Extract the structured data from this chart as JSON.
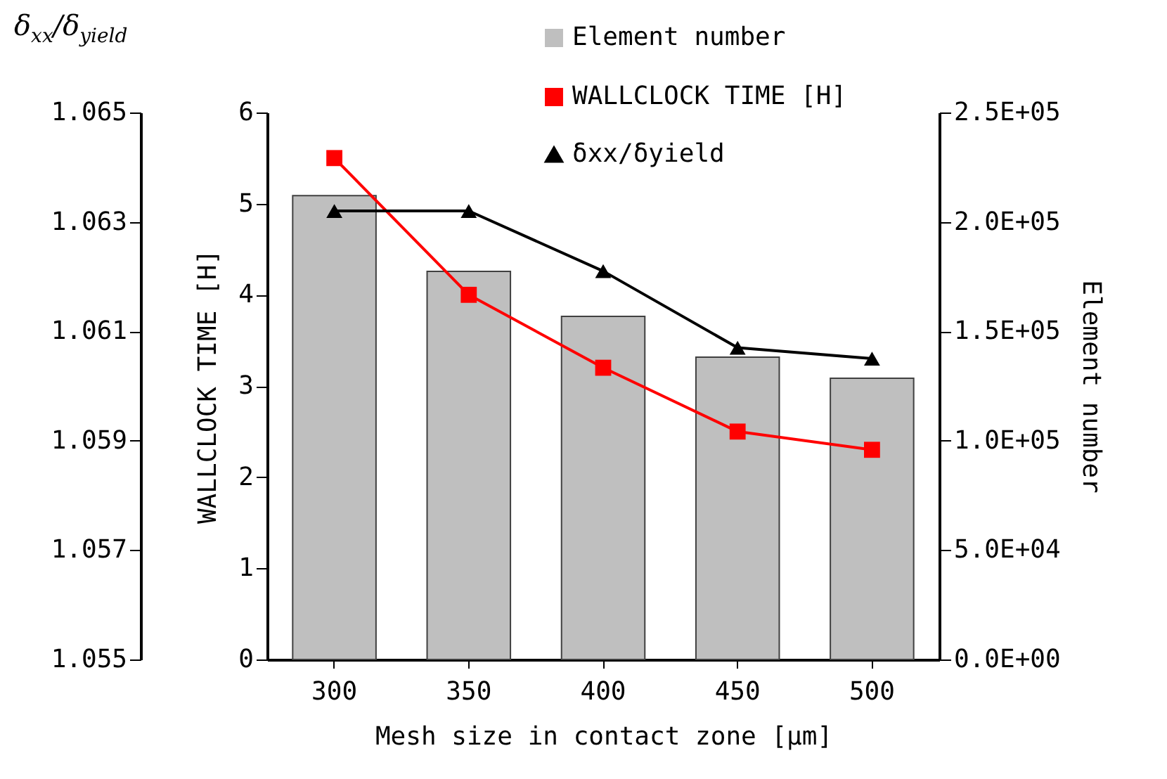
{
  "chart_data": {
    "type": "bar",
    "xlabel": "Mesh size in contact zone [μm]",
    "ylabel": "WALLCLOCK TIME [H]",
    "y2label": "Element number",
    "y3label": "δ$_{xx}$/δ$_{yield}$",
    "categories": [
      "300",
      "350",
      "400",
      "450",
      "500"
    ],
    "series": [
      {
        "name": "Element number",
        "axis": "y2",
        "color": "#bfbfbf",
        "values": [
          212000,
          177400,
          156800,
          138200,
          128500
        ]
      },
      {
        "name": "WALLCLOCK TIME [H]",
        "type": "line",
        "color": "#ff0000",
        "marker": "square",
        "values": [
          5.5,
          4.0,
          3.2,
          2.5,
          2.3
        ]
      },
      {
        "name": "δxx/δyield",
        "type": "line",
        "axis": "y3",
        "color": "#000000",
        "marker": "triangle",
        "values": [
          1.0632,
          1.0632,
          1.0621,
          1.0607,
          1.0605
        ]
      }
    ],
    "ylim": [
      0,
      6
    ],
    "yticks": [
      0,
      1,
      2,
      3,
      4,
      5,
      6
    ],
    "y2lim": [
      0,
      250000
    ],
    "y2ticks": [
      {
        "value": 0,
        "label": "0.0E+00"
      },
      {
        "value": 50000,
        "label": "5.0E+04"
      },
      {
        "value": 100000,
        "label": "1.0E+05"
      },
      {
        "value": 150000,
        "label": "1.5E+05"
      },
      {
        "value": 200000,
        "label": "2.0E+05"
      },
      {
        "value": 250000,
        "label": "2.5E+05"
      }
    ],
    "y3lim": [
      1.055,
      1.065
    ],
    "y3ticks": [
      1.055,
      1.057,
      1.059,
      1.061,
      1.063,
      1.065
    ],
    "legend": "top right",
    "grid": false
  }
}
